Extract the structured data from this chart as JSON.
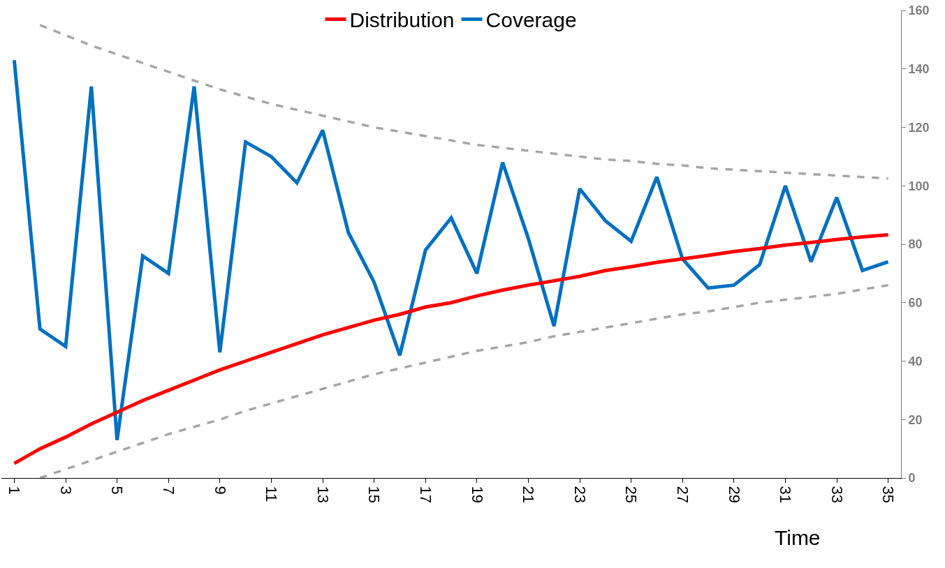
{
  "chart_data": {
    "type": "line",
    "xlabel": "Time",
    "categories": [
      "1",
      null,
      "3",
      null,
      "5",
      null,
      "7",
      null,
      "9",
      null,
      "11",
      null,
      "13",
      null,
      "15",
      null,
      "17",
      null,
      "19",
      null,
      "21",
      null,
      "23",
      null,
      "25",
      null,
      "27",
      null,
      "29",
      null,
      "31",
      null,
      "33",
      null,
      "35"
    ],
    "series": [
      {
        "name": "Distribution",
        "color": "#ff0000",
        "values": [
          5,
          10,
          14,
          18.5,
          22.5,
          26.5,
          30,
          33.5,
          37,
          40,
          43,
          46,
          49,
          51.5,
          54,
          56,
          58.5,
          60,
          62.3,
          64.3,
          66,
          67.5,
          69,
          71,
          72.3,
          73.8,
          75,
          76.2,
          77.5,
          78.5,
          79.7,
          80.6,
          81.6,
          82.5,
          83.2
        ]
      },
      {
        "name": "Coverage",
        "color": "#0070c0",
        "values": [
          143,
          51,
          45,
          134,
          13,
          76,
          70,
          134,
          43,
          115,
          110,
          101,
          119,
          84,
          67,
          42,
          78,
          89,
          70,
          108,
          82,
          52,
          99,
          88,
          81,
          103,
          75,
          65,
          66,
          73,
          100,
          74,
          96,
          71,
          74
        ]
      },
      {
        "color": "#a6a6a6",
        "line_style": "dashed",
        "values": [
          null,
          155,
          151.5,
          148,
          145,
          142,
          139,
          136,
          133,
          130.5,
          128,
          126,
          124,
          122,
          120,
          118.5,
          117,
          115.5,
          114,
          113,
          112,
          111,
          110,
          109,
          108.5,
          107.5,
          107,
          106,
          105.5,
          105,
          104.5,
          104,
          103.5,
          103,
          102.5
        ]
      },
      {
        "color": "#a6a6a6",
        "line_style": "dashed",
        "values": [
          null,
          0,
          3,
          6,
          9,
          12,
          15,
          17.5,
          20,
          23,
          25.5,
          28,
          30.5,
          33,
          35.5,
          37.5,
          39.5,
          41.5,
          43.5,
          45,
          46.5,
          48.5,
          50,
          51.5,
          53,
          54.5,
          56,
          57,
          58.5,
          60,
          61,
          62,
          63,
          64.5,
          66
        ]
      }
    ],
    "ylim": [
      0,
      160
    ],
    "yticks": [
      0,
      20,
      40,
      60,
      80,
      100,
      120,
      140,
      160
    ],
    "grid": false,
    "legend": "top",
    "marker": "none"
  }
}
